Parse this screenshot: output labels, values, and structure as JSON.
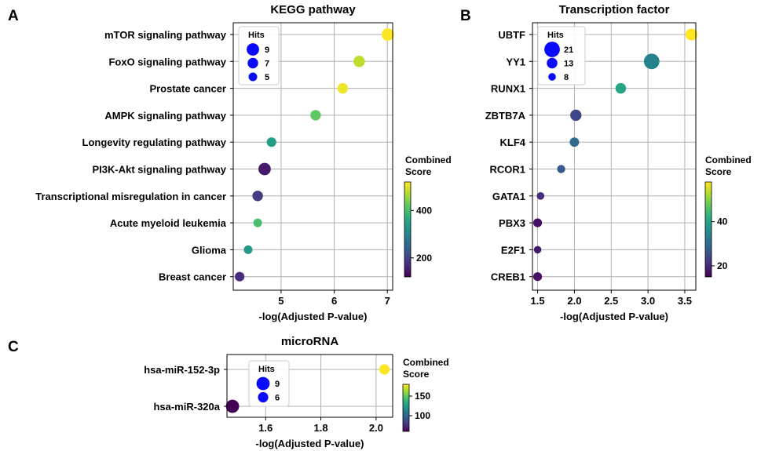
{
  "chart_data": [
    {
      "panel_label": "A",
      "type": "scatter",
      "title": "KEGG pathway",
      "xlabel": "-log(Adjusted P-value)",
      "ylabel": "",
      "xlim": [
        4.1,
        7.1
      ],
      "xticks": [
        5,
        6,
        7
      ],
      "categories": [
        "mTOR signaling pathway",
        "FoxO signaling pathway",
        "Prostate cancer",
        "AMPK signaling pathway",
        "Longevity regulating pathway",
        "PI3K-Akt signaling pathway",
        "Transcriptional misregulation in cancer",
        "Acute myeloid leukemia",
        "Glioma",
        "Breast cancer"
      ],
      "x": [
        7.01,
        6.47,
        6.16,
        5.65,
        4.82,
        4.69,
        4.56,
        4.56,
        4.38,
        4.22
      ],
      "hits": [
        9,
        8,
        7,
        7,
        6,
        9,
        7,
        5,
        5,
        6
      ],
      "combined_score": [
        520,
        480,
        510,
        420,
        340,
        150,
        190,
        400,
        330,
        170
      ],
      "colorbar": {
        "title": "Combined Score",
        "min": 120,
        "max": 520,
        "ticks": [
          200,
          400
        ],
        "tick_labels": [
          "200",
          "400"
        ]
      },
      "legend": {
        "title": "Hits",
        "sizes": [
          9,
          7,
          5
        ],
        "labels": [
          "9",
          "7",
          "5"
        ],
        "placement": "top-left"
      }
    },
    {
      "panel_label": "B",
      "type": "scatter",
      "title": "Transcription factor",
      "xlabel": "-log(Adjusted P-value)",
      "ylabel": "",
      "xlim": [
        1.43,
        3.65
      ],
      "xticks": [
        1.5,
        2.0,
        2.5,
        3.0,
        3.5
      ],
      "categories": [
        "UBTF",
        "YY1",
        "RUNX1",
        "ZBTB7A",
        "KLF4",
        "RCOR1",
        "GATA1",
        "PBX3",
        "E2F1",
        "CREB1"
      ],
      "x": [
        3.59,
        3.05,
        2.63,
        2.02,
        2.0,
        1.82,
        1.54,
        1.5,
        1.5,
        1.5
      ],
      "hits": [
        15,
        21,
        13,
        14,
        11,
        9,
        8,
        10,
        8,
        10
      ],
      "combined_score": [
        58,
        34,
        40,
        24,
        30,
        27,
        20,
        17,
        18,
        17
      ],
      "colorbar": {
        "title": "Combined Score",
        "min": 15,
        "max": 58,
        "ticks": [
          20,
          40
        ],
        "tick_labels": [
          "20",
          "40"
        ]
      },
      "legend": {
        "title": "Hits",
        "sizes": [
          21,
          13,
          8
        ],
        "labels": [
          "21",
          "13",
          "8"
        ],
        "placement": "top-left"
      }
    },
    {
      "panel_label": "C",
      "type": "scatter",
      "title": "microRNA",
      "xlabel": "-log(Adjusted P-value)",
      "ylabel": "",
      "xlim": [
        1.46,
        2.06
      ],
      "xticks": [
        1.6,
        1.8,
        2.0
      ],
      "categories": [
        "hsa-miR-152-3p",
        "hsa-miR-320a"
      ],
      "x": [
        2.03,
        1.48
      ],
      "hits": [
        6,
        9
      ],
      "combined_score": [
        180,
        60
      ],
      "colorbar": {
        "title": "Combined Score",
        "min": 60,
        "max": 180,
        "ticks": [
          100,
          150
        ],
        "tick_labels": [
          "100",
          "150"
        ]
      },
      "legend": {
        "title": "Hits",
        "sizes": [
          9,
          6
        ],
        "labels": [
          "9",
          "6"
        ],
        "placement": "top-left"
      }
    }
  ]
}
